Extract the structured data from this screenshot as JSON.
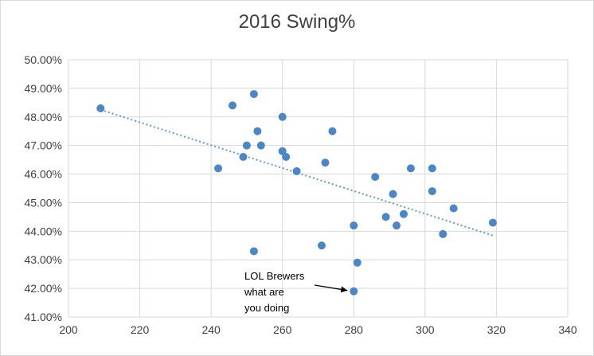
{
  "chart_data": {
    "type": "scatter",
    "title": "2016 Swing%",
    "xlabel": "",
    "ylabel": "",
    "xlim": [
      200,
      340
    ],
    "ylim": [
      41.0,
      50.0
    ],
    "x_ticks": [
      "200",
      "220",
      "240",
      "260",
      "280",
      "300",
      "320",
      "340"
    ],
    "y_ticks": [
      "41.00%",
      "42.00%",
      "43.00%",
      "44.00%",
      "45.00%",
      "46.00%",
      "47.00%",
      "48.00%",
      "49.00%",
      "50.00%"
    ],
    "grid": true,
    "point_color": "#4a86c8",
    "trendline": {
      "style": "dotted linear",
      "color": "#5b9bd5",
      "from": [
        209,
        48.25
      ],
      "to": [
        319,
        43.85
      ]
    },
    "points": [
      {
        "x": 209,
        "y": 48.3
      },
      {
        "x": 246,
        "y": 48.4
      },
      {
        "x": 252,
        "y": 48.8
      },
      {
        "x": 260,
        "y": 48.0
      },
      {
        "x": 253,
        "y": 47.5
      },
      {
        "x": 274,
        "y": 47.5
      },
      {
        "x": 250,
        "y": 47.0
      },
      {
        "x": 254,
        "y": 47.0
      },
      {
        "x": 260,
        "y": 46.8
      },
      {
        "x": 261,
        "y": 46.6
      },
      {
        "x": 249,
        "y": 46.6
      },
      {
        "x": 242,
        "y": 46.2
      },
      {
        "x": 264,
        "y": 46.1
      },
      {
        "x": 272,
        "y": 46.4
      },
      {
        "x": 286,
        "y": 45.9
      },
      {
        "x": 296,
        "y": 46.2
      },
      {
        "x": 302,
        "y": 46.2
      },
      {
        "x": 302,
        "y": 45.4
      },
      {
        "x": 291,
        "y": 45.3
      },
      {
        "x": 308,
        "y": 44.8
      },
      {
        "x": 294,
        "y": 44.6
      },
      {
        "x": 289,
        "y": 44.5
      },
      {
        "x": 280,
        "y": 44.2
      },
      {
        "x": 292,
        "y": 44.2
      },
      {
        "x": 319,
        "y": 44.3
      },
      {
        "x": 305,
        "y": 43.9
      },
      {
        "x": 271,
        "y": 43.5
      },
      {
        "x": 252,
        "y": 43.3
      },
      {
        "x": 281,
        "y": 42.9
      },
      {
        "x": 280,
        "y": 41.9
      }
    ],
    "annotation": {
      "lines": [
        "LOL Brewers",
        "what are",
        "you doing"
      ],
      "points_to": {
        "x": 280,
        "y": 41.9
      }
    }
  }
}
